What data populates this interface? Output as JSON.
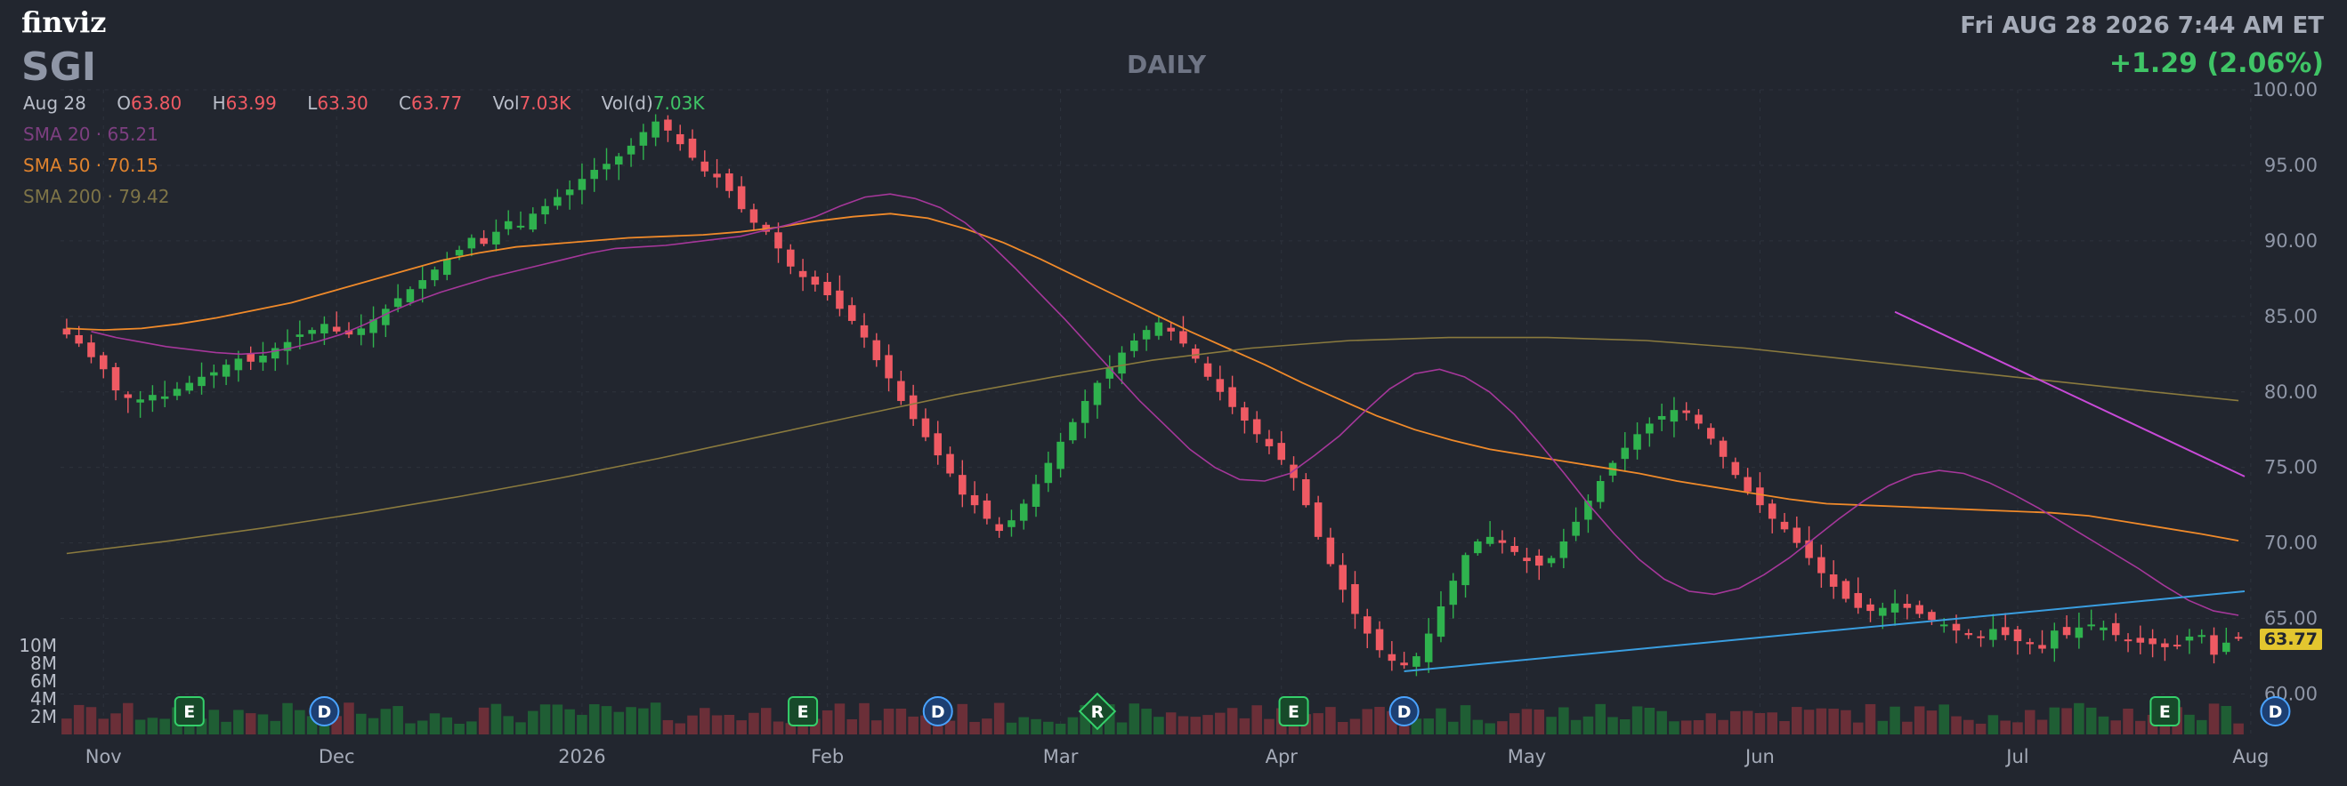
{
  "header": {
    "logo": "finviz",
    "ticker": "SGI",
    "period": "DAILY",
    "datetime": "Fri AUG 28 2026 7:44 AM ET",
    "change": "+1.29 (2.06%)"
  },
  "ohlc": {
    "date": "Aug 28",
    "o_label": "O",
    "open": "63.80",
    "h_label": "H",
    "high": "63.99",
    "l_label": "L",
    "low": "63.30",
    "c_label": "C",
    "close": "63.77",
    "vol_label": "Vol",
    "vol": "7.03K",
    "vold_label": "Vol(d)",
    "vold": "7.03K"
  },
  "sma": [
    {
      "label": "SMA 20",
      "value": "65.21",
      "color": "#a5379a"
    },
    {
      "label": "SMA 50",
      "value": "70.15",
      "color": "#f08a2a"
    },
    {
      "label": "SMA 200",
      "value": "79.42",
      "color": "#8a7a3e"
    }
  ],
  "last_price_badge": "63.77",
  "colors": {
    "up": "#2fb24e",
    "down": "#ef5a63",
    "upVol": "#1f5e34",
    "downVol": "#6b2f38",
    "trendTop": "#c84ad8",
    "trendBottom": "#3a9ee0",
    "bg": "#22262f",
    "grid": "#2e333d"
  },
  "chart_data": {
    "type": "candlestick",
    "ylim": [
      57.5,
      100
    ],
    "y_ticks": [
      "100.00",
      "95.00",
      "90.00",
      "85.00",
      "80.00",
      "75.00",
      "70.00",
      "65.00",
      "60.00"
    ],
    "volume_ticks": [
      "10M",
      "8M",
      "6M",
      "4M",
      "2M"
    ],
    "volume_max": 14,
    "x_labels": [
      {
        "label": "Nov",
        "index": 3
      },
      {
        "label": "Dec",
        "index": 22
      },
      {
        "label": "2026",
        "index": 42
      },
      {
        "label": "Feb",
        "index": 62
      },
      {
        "label": "Mar",
        "index": 81
      },
      {
        "label": "Apr",
        "index": 99
      },
      {
        "label": "May",
        "index": 119
      },
      {
        "label": "Jun",
        "index": 138
      },
      {
        "label": "Jul",
        "index": 159
      },
      {
        "label": "Aug",
        "index": 178
      }
    ],
    "closes": [
      83.8,
      83.2,
      82.3,
      81.5,
      80.1,
      79.6,
      79.5,
      79.8,
      79.7,
      80.2,
      80.6,
      81.0,
      81.3,
      81.8,
      82.2,
      82.0,
      82.4,
      82.9,
      83.3,
      83.8,
      84.1,
      84.5,
      84.0,
      83.8,
      84.2,
      84.8,
      85.5,
      86.2,
      86.8,
      87.4,
      88.1,
      88.8,
      89.4,
      90.2,
      89.8,
      90.6,
      91.3,
      91.0,
      91.8,
      92.3,
      92.9,
      93.4,
      94.1,
      94.7,
      95.1,
      95.6,
      96.3,
      97.2,
      97.9,
      97.3,
      96.4,
      95.5,
      94.6,
      94.2,
      93.3,
      92.1,
      91.2,
      90.6,
      89.5,
      88.3,
      87.6,
      87.1,
      86.4,
      85.5,
      84.7,
      83.6,
      82.1,
      80.9,
      79.4,
      78.2,
      77.0,
      75.8,
      74.6,
      73.2,
      72.5,
      71.6,
      70.8,
      71.5,
      72.6,
      73.9,
      75.3,
      76.7,
      78.0,
      79.4,
      80.6,
      81.6,
      82.6,
      83.4,
      84.1,
      84.6,
      84.0,
      83.2,
      82.2,
      81.0,
      80.0,
      79.0,
      78.1,
      77.2,
      76.4,
      75.5,
      74.3,
      72.5,
      70.4,
      68.6,
      66.9,
      65.3,
      64.0,
      62.9,
      62.2,
      61.9,
      62.5,
      64.0,
      65.8,
      67.5,
      69.2,
      70.1,
      70.4,
      70.0,
      69.4,
      68.8,
      68.5,
      69.0,
      70.1,
      71.4,
      72.8,
      74.1,
      75.3,
      76.3,
      77.2,
      77.9,
      78.4,
      78.8,
      78.6,
      77.9,
      76.9,
      75.7,
      74.5,
      73.4,
      72.5,
      71.6,
      70.9,
      70.0,
      69.0,
      68.0,
      67.1,
      66.3,
      65.7,
      65.5,
      65.7,
      66.0,
      65.7,
      65.3,
      64.9,
      64.6,
      64.2,
      63.9,
      63.8,
      64.3,
      63.9,
      63.5,
      63.3,
      63.0,
      64.2,
      63.9,
      64.4,
      64.6,
      64.4,
      63.9,
      63.5,
      63.4,
      63.3,
      63.1,
      63.2,
      63.8,
      63.9,
      62.6,
      63.4,
      63.77
    ],
    "sma20": [
      84.0,
      83.6,
      83.3,
      83.0,
      82.8,
      82.6,
      82.5,
      82.6,
      82.9,
      83.3,
      83.8,
      84.5,
      85.3,
      86.0,
      86.6,
      87.1,
      87.6,
      88.0,
      88.4,
      88.8,
      89.2,
      89.5,
      89.6,
      89.7,
      89.9,
      90.1,
      90.3,
      90.7,
      91.1,
      91.6,
      92.3,
      92.9,
      93.1,
      92.8,
      92.2,
      91.2,
      89.8,
      88.2,
      86.5,
      84.8,
      83.0,
      81.2,
      79.4,
      77.8,
      76.2,
      75.0,
      74.2,
      74.1,
      74.6,
      75.8,
      77.1,
      78.7,
      80.2,
      81.2,
      81.5,
      81.0,
      80.0,
      78.5,
      76.6,
      74.6,
      72.5,
      70.6,
      68.9,
      67.6,
      66.8,
      66.6,
      67.0,
      67.9,
      69.0,
      70.3,
      71.6,
      72.8,
      73.8,
      74.5,
      74.8,
      74.6,
      74.0,
      73.2,
      72.3,
      71.3,
      70.3,
      69.3,
      68.3,
      67.2,
      66.2,
      65.5,
      65.21
    ],
    "sma50": [
      84.2,
      84.1,
      84.2,
      84.5,
      84.9,
      85.4,
      85.9,
      86.6,
      87.3,
      88.0,
      88.7,
      89.2,
      89.6,
      89.8,
      90.0,
      90.2,
      90.3,
      90.4,
      90.6,
      90.9,
      91.3,
      91.6,
      91.8,
      91.5,
      90.8,
      89.9,
      88.8,
      87.6,
      86.4,
      85.2,
      84.0,
      82.9,
      81.8,
      80.6,
      79.5,
      78.4,
      77.5,
      76.8,
      76.2,
      75.8,
      75.4,
      75.0,
      74.6,
      74.1,
      73.7,
      73.3,
      72.9,
      72.6,
      72.5,
      72.4,
      72.3,
      72.2,
      72.1,
      72.0,
      71.8,
      71.4,
      71.0,
      70.6,
      70.15
    ]
  },
  "annotations": {
    "earnings": "E",
    "dividend": "D",
    "rating": "R"
  }
}
